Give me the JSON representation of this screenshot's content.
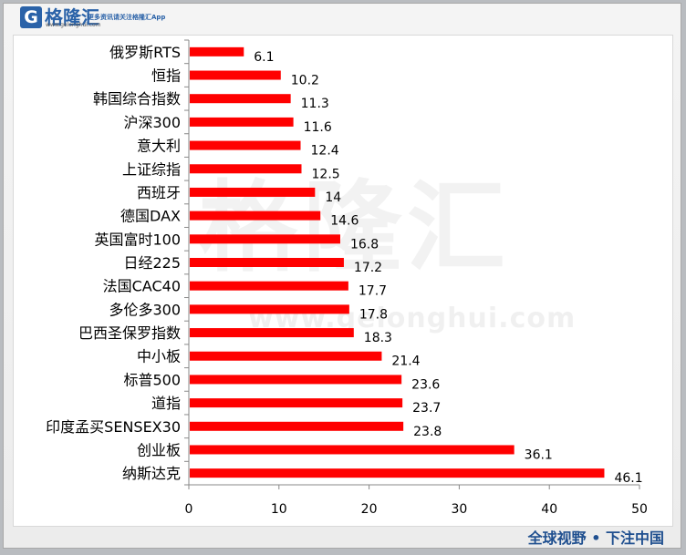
{
  "brand": {
    "logo_mark": "G",
    "name": "格隆汇",
    "url": "www.gelonghui.com",
    "top_slogan": "更多资讯请关注格隆汇App",
    "bottom_slogan": "全球视野 • 下注中国",
    "watermark": "格隆汇",
    "watermark_url": "www.gelonghui.com"
  },
  "colors": {
    "bar": "#ff0000",
    "brand": "#2a62a8"
  },
  "chart_data": {
    "type": "bar",
    "orientation": "horizontal",
    "title": "",
    "xlabel": "",
    "ylabel": "",
    "categories": [
      "俄罗斯RTS",
      "恒指",
      "韩国综合指数",
      "沪深300",
      "意大利",
      "上证综指",
      "西班牙",
      "德国DAX",
      "英国富时100",
      "日经225",
      "法国CAC40",
      "多伦多300",
      "巴西圣保罗指数",
      "中小板",
      "标普500",
      "道指",
      "印度孟买SENSEX30",
      "创业板",
      "纳斯达克"
    ],
    "values": [
      6.1,
      10.2,
      11.3,
      11.6,
      12.4,
      12.5,
      14,
      14.6,
      16.8,
      17.2,
      17.7,
      17.8,
      18.3,
      21.4,
      23.6,
      23.7,
      23.8,
      36.1,
      46.1
    ],
    "value_labels": [
      "6.1",
      "10.2",
      "11.3",
      "11.6",
      "12.4",
      "12.5",
      "14",
      "14.6",
      "16.8",
      "17.2",
      "17.7",
      "17.8",
      "18.3",
      "21.4",
      "23.6",
      "23.7",
      "23.8",
      "36.1",
      "46.1"
    ],
    "xlim": [
      0,
      50
    ],
    "xticks": [
      "0",
      "10",
      "20",
      "30",
      "40",
      "50"
    ],
    "grid": false,
    "legend": "none"
  }
}
